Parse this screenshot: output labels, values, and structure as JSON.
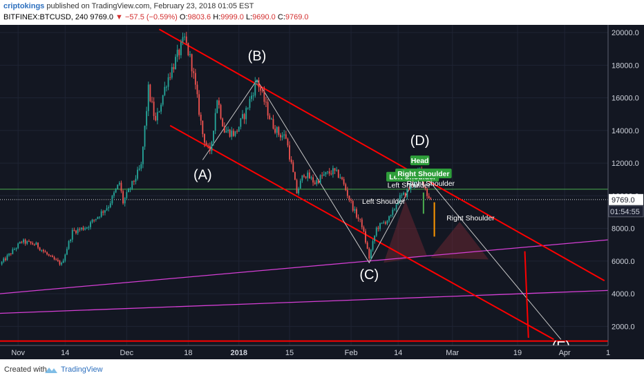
{
  "header": {
    "author": "criptokings",
    "published_text": "published on TradingView.com, February 23, 2018 01:05 EST",
    "symbol": "BITFINEX:BTCUSD, 240",
    "last": "9769.0",
    "change_arrow": "▼",
    "change": "−57.5 (−0.59%)",
    "o_label": "O:",
    "o": "9803.6",
    "h_label": "H:",
    "h": "9999.0",
    "l_label": "L:",
    "l": "9690.0",
    "c_label": "C:",
    "c": "9769.0"
  },
  "footer": {
    "created_with": "Created with",
    "brand": "TradingView"
  },
  "colors": {
    "background": "#131722",
    "candle_up": "#26a69a",
    "candle_down": "#ef5350",
    "channel": "#ff0000",
    "support": "#d63fd6",
    "green_line": "#4caf50",
    "path_line": "#c8c8c8",
    "author": "#2c6fbe"
  },
  "chart_data": {
    "type": "candlestick",
    "title": "BITFINEX:BTCUSD, 240",
    "y_axis": {
      "range": [
        1000,
        20300
      ],
      "ticks": [
        "20000.0",
        "18000.0",
        "16000.0",
        "14000.0",
        "12000.0",
        "10000.0",
        "8000.0",
        "6000.0",
        "4000.0",
        "2000.0"
      ],
      "last_price": "9769.0",
      "countdown": "01:54:55"
    },
    "x_axis": {
      "range": [
        "2017-10-27",
        "2018-04-13"
      ],
      "ticks": [
        {
          "label": "Nov",
          "date": "2017-11-01"
        },
        {
          "label": "14",
          "date": "2017-11-14"
        },
        {
          "label": "Dec",
          "date": "2017-12-01"
        },
        {
          "label": "18",
          "date": "2017-12-18"
        },
        {
          "label": "2018",
          "date": "2018-01-01",
          "bold": true
        },
        {
          "label": "15",
          "date": "2018-01-15"
        },
        {
          "label": "Feb",
          "date": "2018-02-01"
        },
        {
          "label": "14",
          "date": "2018-02-14"
        },
        {
          "label": "Mar",
          "date": "2018-03-01"
        },
        {
          "label": "19",
          "date": "2018-03-19"
        },
        {
          "label": "Apr",
          "date": "2018-04-01"
        },
        {
          "label": "1",
          "date": "2018-04-13"
        }
      ]
    },
    "price_path": [
      [
        "2017-10-27",
        5800
      ],
      [
        "2017-11-02",
        7200
      ],
      [
        "2017-11-06",
        7000
      ],
      [
        "2017-11-10",
        6200
      ],
      [
        "2017-11-13",
        5800
      ],
      [
        "2017-11-16",
        7800
      ],
      [
        "2017-11-20",
        8100
      ],
      [
        "2017-11-26",
        9400
      ],
      [
        "2017-11-29",
        10800
      ],
      [
        "2017-11-30",
        9600
      ],
      [
        "2017-12-05",
        11800
      ],
      [
        "2017-12-07",
        16500
      ],
      [
        "2017-12-09",
        14500
      ],
      [
        "2017-12-12",
        17000
      ],
      [
        "2017-12-17",
        19600
      ],
      [
        "2017-12-19",
        18000
      ],
      [
        "2017-12-22",
        13800
      ],
      [
        "2017-12-24",
        12500
      ],
      [
        "2017-12-26",
        16000
      ],
      [
        "2017-12-28",
        14000
      ],
      [
        "2017-12-31",
        13800
      ],
      [
        "2018-01-03",
        15200
      ],
      [
        "2018-01-06",
        17100
      ],
      [
        "2018-01-10",
        14500
      ],
      [
        "2018-01-12",
        13800
      ],
      [
        "2018-01-14",
        13600
      ],
      [
        "2018-01-17",
        10200
      ],
      [
        "2018-01-19",
        11400
      ],
      [
        "2018-01-22",
        10800
      ],
      [
        "2018-01-24",
        11200
      ],
      [
        "2018-01-27",
        11500
      ],
      [
        "2018-01-29",
        11200
      ],
      [
        "2018-02-02",
        9000
      ],
      [
        "2018-02-04",
        8200
      ],
      [
        "2018-02-06",
        6200
      ],
      [
        "2018-02-08",
        8000
      ],
      [
        "2018-02-12",
        8700
      ],
      [
        "2018-02-14",
        9800
      ],
      [
        "2018-02-16",
        10100
      ],
      [
        "2018-02-20",
        11500
      ],
      [
        "2018-02-22",
        10100
      ],
      [
        "2018-02-23",
        9769
      ]
    ],
    "annotations": [
      {
        "text": "(A)",
        "date": "2017-12-22",
        "price": 11000
      },
      {
        "text": "(B)",
        "date": "2018-01-06",
        "price": 18300
      },
      {
        "text": "(C)",
        "date": "2018-02-06",
        "price": 4900
      },
      {
        "text": "(D)",
        "date": "2018-02-20",
        "price": 13100
      },
      {
        "text": "(E)",
        "date": "2018-03-31",
        "price": 500
      }
    ],
    "pattern_labels": [
      "Left Shoulder",
      "Head",
      "Right Shoulder",
      "Left Shoulder",
      "Right Shoulder",
      "Left Shoulder",
      "Right Shoulder"
    ],
    "channel_upper": [
      [
        "2017-12-10",
        20200
      ],
      [
        "2018-04-12",
        4800
      ]
    ],
    "channel_lower": [
      [
        "2017-12-13",
        14300
      ],
      [
        "2018-03-29",
        1200
      ]
    ],
    "horizontal_support": 1100,
    "green_level": 10400,
    "support_lines": [
      [
        [
          "2017-10-27",
          2800
        ],
        [
          "2018-04-13",
          4200
        ]
      ],
      [
        [
          "2017-10-27",
          4000
        ],
        [
          "2018-04-13",
          7300
        ]
      ]
    ],
    "path_lines": [
      [
        [
          "2017-12-22",
          12200
        ],
        [
          "2018-01-06",
          17100
        ],
        [
          "2018-02-06",
          5900
        ],
        [
          "2018-02-20",
          11600
        ],
        [
          "2018-03-31",
          1200
        ]
      ]
    ],
    "projection": [
      [
        "2018-03-21",
        6600
      ],
      [
        "2018-03-22",
        1300
      ]
    ]
  }
}
